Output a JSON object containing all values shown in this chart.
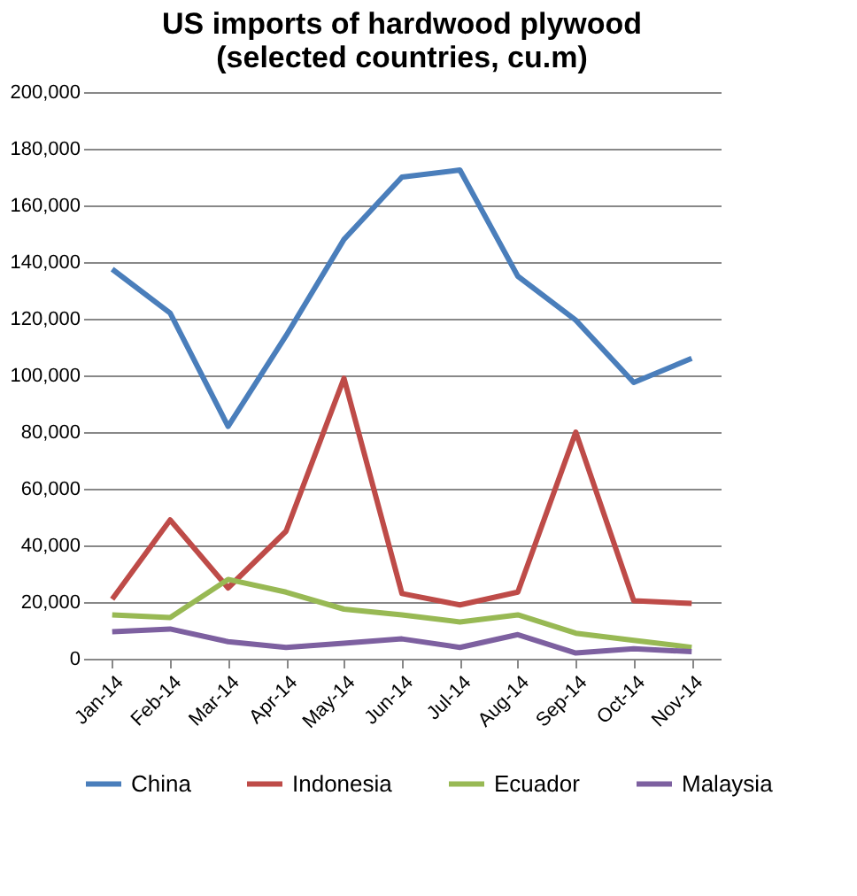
{
  "chart_data": {
    "type": "line",
    "title": "US imports of hardwood plywood\n(selected countries, cu.m)",
    "categories": [
      "Jan-14",
      "Feb-14",
      "Mar-14",
      "Apr-14",
      "May-14",
      "Jun-14",
      "Jul-14",
      "Aug-14",
      "Sep-14",
      "Oct-14",
      "Nov-14"
    ],
    "series": [
      {
        "name": "China",
        "color": "#4a7ebb",
        "values": [
          137500,
          122000,
          82000,
          114000,
          148000,
          170000,
          172500,
          135000,
          119500,
          97500,
          106000
        ]
      },
      {
        "name": "Indonesia",
        "color": "#be4b48",
        "values": [
          21000,
          49000,
          25000,
          45000,
          99000,
          23000,
          19000,
          23500,
          80000,
          20500,
          19500
        ]
      },
      {
        "name": "Ecuador",
        "color": "#98b954",
        "values": [
          15500,
          14500,
          28000,
          23500,
          17500,
          15500,
          13000,
          15500,
          9000,
          6500,
          4000
        ]
      },
      {
        "name": "Malaysia",
        "color": "#7d60a0",
        "values": [
          9500,
          10500,
          6000,
          4000,
          5500,
          7000,
          4000,
          8500,
          2000,
          3500,
          2500
        ]
      }
    ],
    "ylim": [
      0,
      200000
    ],
    "yticks": [
      {
        "value": 0,
        "label": "0"
      },
      {
        "value": 20000,
        "label": "20,000"
      },
      {
        "value": 40000,
        "label": "40,000"
      },
      {
        "value": 60000,
        "label": "60,000"
      },
      {
        "value": 80000,
        "label": "80,000"
      },
      {
        "value": 100000,
        "label": "100,000"
      },
      {
        "value": 120000,
        "label": "120,000"
      },
      {
        "value": 140000,
        "label": "140,000"
      },
      {
        "value": 160000,
        "label": "160,000"
      },
      {
        "value": 180000,
        "label": "180,000"
      },
      {
        "value": 200000,
        "label": "200,000"
      }
    ],
    "grid": "y",
    "legend": "bottom",
    "marker": "none",
    "line_style": "solid"
  }
}
